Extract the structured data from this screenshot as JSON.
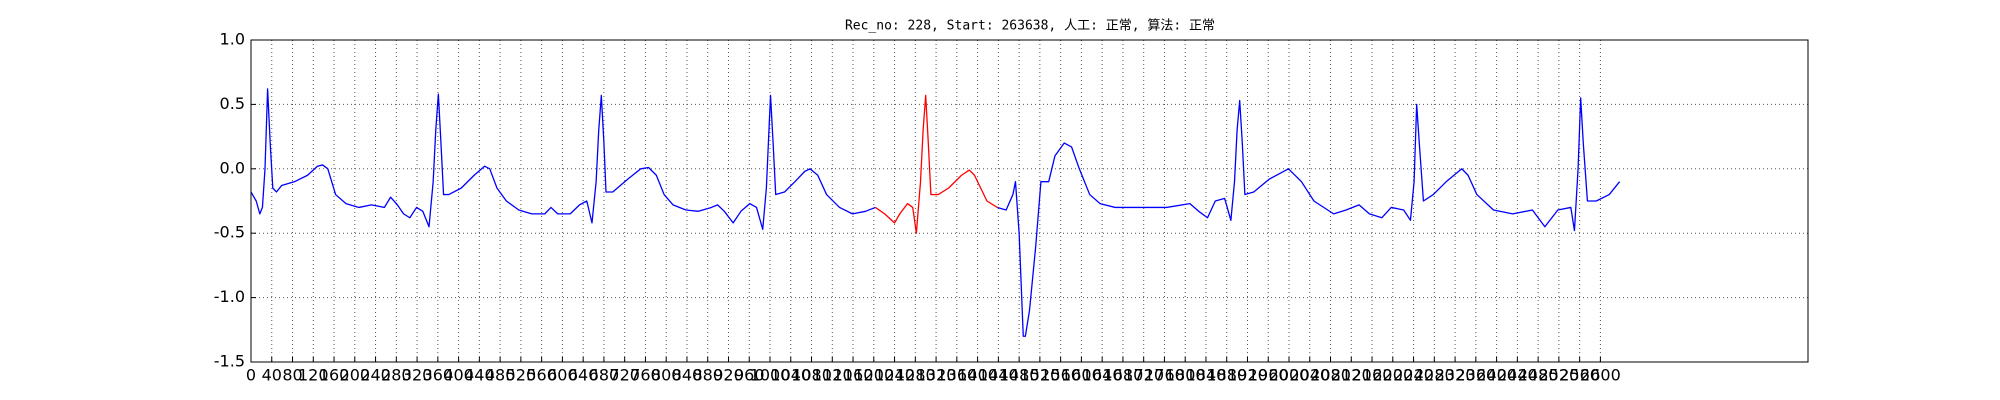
{
  "chart_data": {
    "type": "line",
    "title": "Rec_no: 228, Start: 263638, 人工: 正常, 算法: 正常",
    "x": [
      0,
      10,
      17,
      22,
      27,
      32,
      37,
      42,
      49,
      59,
      84,
      109,
      128,
      138,
      148,
      163,
      183,
      208,
      232,
      257,
      269,
      282,
      294,
      306,
      319,
      331,
      343,
      351,
      356,
      361,
      366,
      371,
      381,
      405,
      430,
      450,
      460,
      474,
      492,
      516,
      541,
      566,
      578,
      591,
      615,
      633,
      647,
      657,
      665,
      670,
      675,
      680,
      684,
      697,
      726,
      751,
      766,
      781,
      796,
      813,
      838,
      862,
      887,
      899,
      912,
      929,
      944,
      961,
      974,
      986,
      993,
      998,
      1001,
      1006,
      1011,
      1028,
      1048,
      1067,
      1077,
      1092,
      1109,
      1134,
      1159,
      1184,
      1203,
      1221,
      1240,
      1250,
      1265,
      1275,
      1282,
      1290,
      1295,
      1300,
      1305,
      1310,
      1324,
      1344,
      1369,
      1384,
      1394,
      1406,
      1418,
      1438,
      1455,
      1468,
      1473,
      1480,
      1488,
      1492,
      1500,
      1512,
      1522,
      1537,
      1549,
      1567,
      1581,
      1596,
      1616,
      1636,
      1665,
      1715,
      1764,
      1809,
      1826,
      1843,
      1858,
      1876,
      1888,
      1895,
      1900,
      1905,
      1910,
      1915,
      1932,
      1962,
      1999,
      2024,
      2048,
      2086,
      2110,
      2135,
      2155,
      2179,
      2197,
      2221,
      2234,
      2241,
      2246,
      2251,
      2259,
      2278,
      2303,
      2333,
      2345,
      2362,
      2394,
      2431,
      2469,
      2493,
      2518,
      2543,
      2550,
      2557,
      2562,
      2567,
      2575,
      2592,
      2617,
      2637
    ],
    "series": [
      {
        "color": "#0000ff",
        "values": [
          -0.18,
          -0.25,
          -0.35,
          -0.3,
          0.0,
          0.62,
          0.2,
          -0.15,
          -0.18,
          -0.13,
          -0.1,
          -0.05,
          0.02,
          0.03,
          0.0,
          -0.2,
          -0.27,
          -0.3,
          -0.28,
          -0.3,
          -0.22,
          -0.28,
          -0.35,
          -0.38,
          -0.3,
          -0.33,
          -0.45,
          -0.1,
          0.3,
          0.58,
          0.2,
          -0.2,
          -0.2,
          -0.15,
          -0.05,
          0.02,
          0.0,
          -0.15,
          -0.25,
          -0.32,
          -0.35,
          -0.35,
          -0.3,
          -0.35,
          -0.35,
          -0.28,
          -0.25,
          -0.42,
          -0.1,
          0.3,
          0.57,
          0.2,
          -0.18,
          -0.18,
          -0.08,
          0.0,
          0.01,
          -0.05,
          -0.2,
          -0.28,
          -0.32,
          -0.33,
          -0.3,
          -0.28,
          -0.33,
          -0.42,
          -0.33,
          -0.27,
          -0.3,
          -0.47,
          -0.15,
          0.3,
          0.57,
          0.2,
          -0.2,
          -0.18,
          -0.1,
          -0.02,
          0.0,
          -0.05,
          -0.2,
          -0.3,
          -0.35,
          -0.33,
          -0.3,
          null,
          null,
          null,
          null,
          null,
          null,
          null,
          null,
          null,
          null,
          null,
          null,
          null,
          null,
          null,
          null,
          null,
          null,
          -0.3,
          -0.32,
          -0.2,
          -0.1,
          -0.5,
          -1.3,
          -1.3,
          -1.1,
          -0.6,
          -0.1,
          -0.1,
          0.1,
          0.2,
          0.17,
          0.0,
          -0.2,
          -0.27,
          -0.3,
          -0.3,
          -0.3,
          -0.27,
          -0.33,
          -0.38,
          -0.25,
          -0.23,
          -0.4,
          -0.1,
          0.3,
          0.53,
          0.2,
          -0.2,
          -0.18,
          -0.08,
          0.0,
          -0.1,
          -0.25,
          -0.35,
          -0.32,
          -0.28,
          -0.35,
          -0.38,
          -0.3,
          -0.32,
          -0.4,
          -0.1,
          0.5,
          0.2,
          -0.25,
          -0.2,
          -0.1,
          0.0,
          -0.05,
          -0.2,
          -0.32,
          -0.35,
          -0.32,
          -0.45,
          -0.32,
          -0.3,
          -0.48,
          0.0,
          0.55,
          0.2,
          -0.25,
          -0.25,
          -0.2,
          -0.1
        ]
      },
      {
        "color": "#ff0000",
        "values": [
          null,
          null,
          null,
          null,
          null,
          null,
          null,
          null,
          null,
          null,
          null,
          null,
          null,
          null,
          null,
          null,
          null,
          null,
          null,
          null,
          null,
          null,
          null,
          null,
          null,
          null,
          null,
          null,
          null,
          null,
          null,
          null,
          null,
          null,
          null,
          null,
          null,
          null,
          null,
          null,
          null,
          null,
          null,
          null,
          null,
          null,
          null,
          null,
          null,
          null,
          null,
          null,
          null,
          null,
          null,
          null,
          null,
          null,
          null,
          null,
          null,
          null,
          null,
          null,
          null,
          null,
          null,
          null,
          null,
          null,
          null,
          null,
          null,
          null,
          null,
          null,
          null,
          null,
          null,
          null,
          null,
          null,
          null,
          null,
          -0.3,
          -0.35,
          -0.42,
          -0.35,
          -0.27,
          -0.3,
          -0.5,
          -0.1,
          0.3,
          0.57,
          0.2,
          -0.2,
          -0.2,
          -0.15,
          -0.05,
          -0.01,
          -0.05,
          -0.15,
          -0.25,
          -0.3,
          null,
          null,
          null,
          null,
          null,
          null,
          null,
          null,
          null,
          null,
          null,
          null,
          null,
          null,
          null,
          null,
          null,
          null,
          null,
          null,
          null,
          null,
          null,
          null,
          null,
          null,
          null,
          null,
          null,
          null,
          null,
          null,
          null,
          null,
          null,
          null,
          null,
          null,
          null,
          null,
          null,
          null,
          null,
          null,
          null,
          null,
          null,
          null,
          null,
          null,
          null,
          null,
          null,
          null,
          null,
          null,
          null,
          null,
          null,
          null,
          null,
          null,
          null,
          null,
          null,
          null
        ]
      }
    ],
    "xlim": [
      0,
      3000
    ],
    "xticks": [
      0,
      40,
      80,
      120,
      160,
      200,
      240,
      280,
      320,
      360,
      400,
      440,
      480,
      520,
      560,
      600,
      640,
      680,
      720,
      760,
      800,
      840,
      880,
      920,
      960,
      1000,
      1040,
      1080,
      1120,
      1160,
      1200,
      1240,
      1280,
      1320,
      1360,
      1400,
      1440,
      1480,
      1520,
      1560,
      1600,
      1640,
      1680,
      1720,
      1760,
      1800,
      1840,
      1880,
      1920,
      1960,
      2000,
      2040,
      2080,
      2120,
      2160,
      2200,
      2240,
      2280,
      2320,
      2360,
      2400,
      2440,
      2480,
      2520,
      2560,
      2600
    ],
    "ylim": [
      -1.5,
      1.0
    ],
    "yticks": [
      {
        "value": -1.5,
        "label": "-1.5"
      },
      {
        "value": -1,
        "label": "-1.0"
      },
      -0.5,
      {
        "value": 0,
        "label": "0.0"
      },
      0.5,
      {
        "value": 1,
        "label": "1.0"
      }
    ],
    "grid": true
  }
}
